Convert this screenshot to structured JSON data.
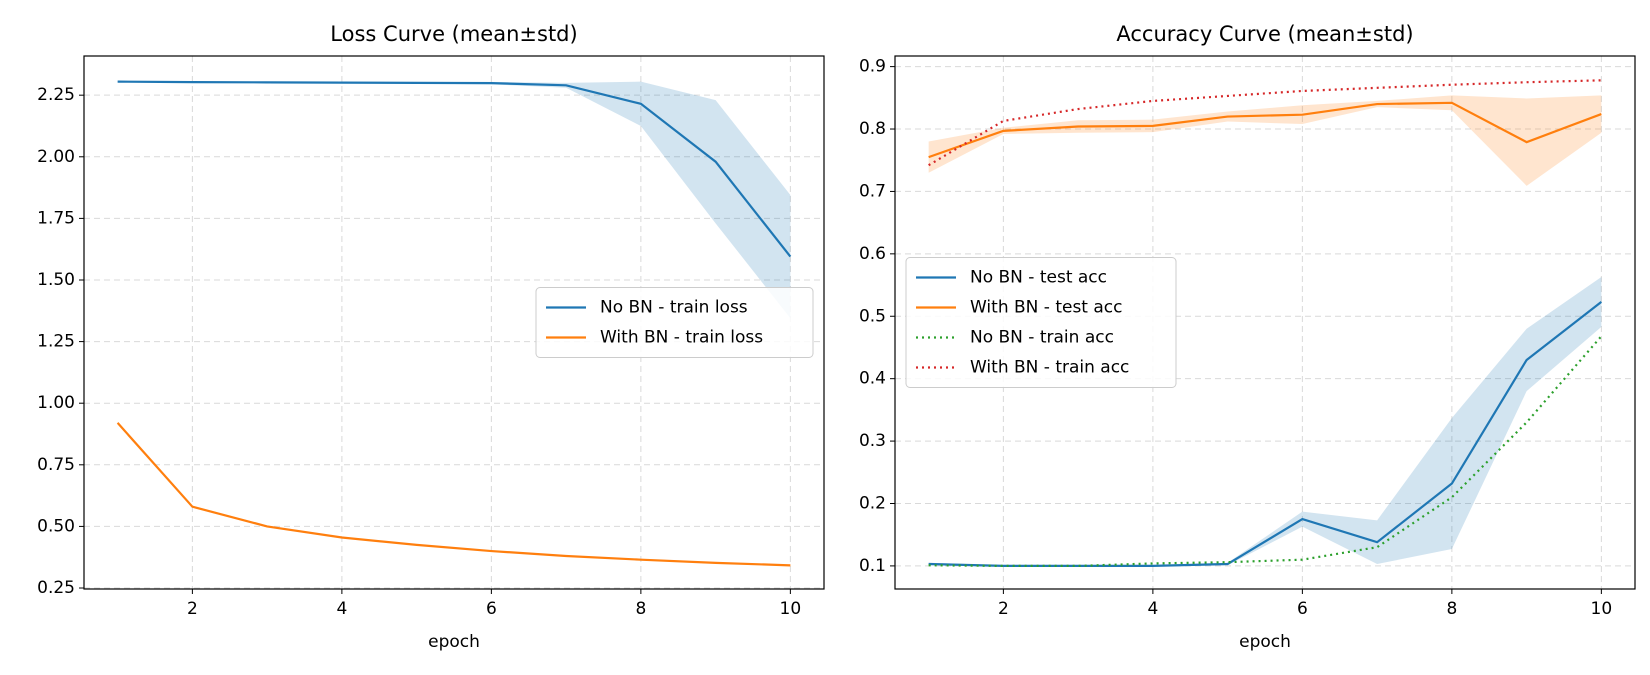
{
  "chart_data": [
    {
      "type": "line",
      "title": "Loss Curve (mean±std)",
      "xlabel": "epoch",
      "x": [
        1,
        2,
        3,
        4,
        5,
        6,
        7,
        8,
        9,
        10
      ],
      "xlim": [
        0.55,
        10.45
      ],
      "xticks": [
        2,
        4,
        6,
        8,
        10
      ],
      "ylim": [
        0.246,
        2.409
      ],
      "yticks": [
        {
          "value": 0.25,
          "label": "0.25"
        },
        {
          "value": 0.5,
          "label": "0.50"
        },
        {
          "value": 0.75,
          "label": "0.75"
        },
        {
          "value": 1,
          "label": "1.00"
        },
        {
          "value": 1.25,
          "label": "1.25"
        },
        {
          "value": 1.5,
          "label": "1.50"
        },
        {
          "value": 1.75,
          "label": "1.75"
        },
        {
          "value": 2,
          "label": "2.00"
        },
        {
          "value": 2.25,
          "label": "2.25"
        }
      ],
      "grid": true,
      "legend": "center right",
      "series": [
        {
          "name": "No BN - train loss",
          "color": "#1f77b4",
          "linestyle": "solid",
          "values": [
            2.305,
            2.303,
            2.302,
            2.301,
            2.3,
            2.299,
            2.29,
            2.215,
            1.98,
            1.595
          ],
          "std": [
            0.002,
            0.002,
            0.002,
            0.002,
            0.003,
            0.005,
            0.01,
            0.09,
            0.25,
            0.25
          ]
        },
        {
          "name": "With BN - train loss",
          "color": "#ff7f0e",
          "linestyle": "solid",
          "values": [
            0.92,
            0.58,
            0.5,
            0.455,
            0.425,
            0.4,
            0.38,
            0.365,
            0.352,
            0.342
          ],
          "std": [
            0.005,
            0.004,
            0.003,
            0.003,
            0.003,
            0.003,
            0.003,
            0.003,
            0.003,
            0.003
          ]
        }
      ]
    },
    {
      "type": "line",
      "title": "Accuracy Curve (mean±std)",
      "xlabel": "epoch",
      "x": [
        1,
        2,
        3,
        4,
        5,
        6,
        7,
        8,
        9,
        10
      ],
      "xlim": [
        0.55,
        10.45
      ],
      "xticks": [
        2,
        4,
        6,
        8,
        10
      ],
      "ylim": [
        0.063,
        0.917
      ],
      "yticks": [
        0.1,
        0.2,
        0.3,
        0.4,
        0.5,
        0.6,
        0.7,
        0.8,
        0.9
      ],
      "grid": true,
      "legend": "center left",
      "series": [
        {
          "name": "No BN - test acc",
          "color": "#1f77b4",
          "linestyle": "solid",
          "values": [
            0.103,
            0.1,
            0.1,
            0.1,
            0.103,
            0.175,
            0.138,
            0.232,
            0.43,
            0.523
          ],
          "std": [
            0.002,
            0.001,
            0.001,
            0.001,
            0.002,
            0.012,
            0.035,
            0.105,
            0.05,
            0.04
          ]
        },
        {
          "name": "With BN - test acc",
          "color": "#ff7f0e",
          "linestyle": "solid",
          "values": [
            0.755,
            0.797,
            0.804,
            0.805,
            0.82,
            0.823,
            0.84,
            0.842,
            0.779,
            0.824
          ],
          "std": [
            0.025,
            0.005,
            0.01,
            0.01,
            0.008,
            0.015,
            0.005,
            0.012,
            0.07,
            0.03
          ]
        },
        {
          "name": "No BN - train acc",
          "color": "#2ca02c",
          "linestyle": "dotted",
          "values": [
            0.101,
            0.1,
            0.1,
            0.104,
            0.106,
            0.11,
            0.13,
            0.21,
            0.33,
            0.468
          ]
        },
        {
          "name": "With BN - train acc",
          "color": "#d62728",
          "linestyle": "dotted",
          "values": [
            0.742,
            0.813,
            0.832,
            0.845,
            0.853,
            0.861,
            0.866,
            0.871,
            0.875,
            0.878
          ]
        }
      ]
    }
  ]
}
